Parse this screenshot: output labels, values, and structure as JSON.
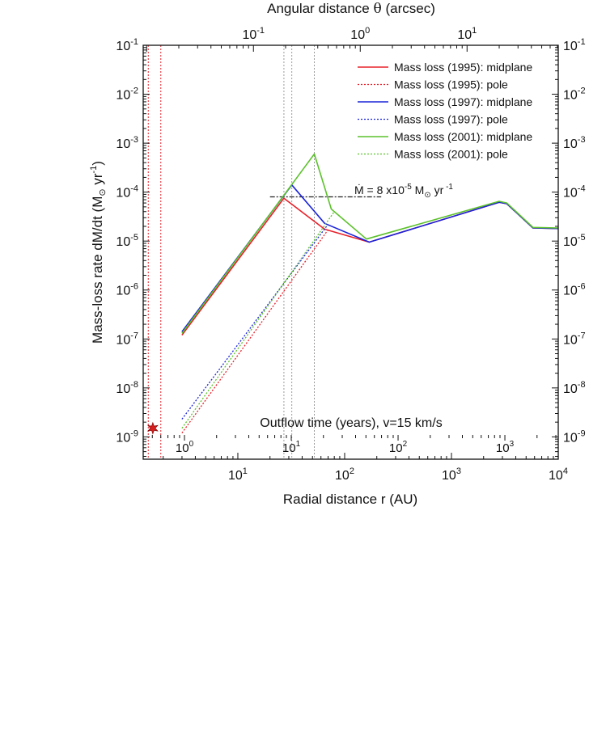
{
  "chart_data": {
    "type": "line",
    "top_axis_label_main": "Angular distance ",
    "top_axis_label_symbol": "θ",
    "top_axis_label_unit": " (arcsec)",
    "xlabel": "Radial distance r (AU)",
    "ylabel_main": "Mass-loss rate  dM/dt (M",
    "ylabel_sun": "⊙",
    "ylabel_unit": " yr",
    "ylabel_exp": "-1",
    "ylabel_close": ")",
    "x_scale": "log",
    "y_scale": "log",
    "xlim": [
      1.3,
      10000
    ],
    "ylim": [
      3.5e-10,
      0.1
    ],
    "x_ticks": [
      {
        "base": "10",
        "exp": "1"
      },
      {
        "base": "10",
        "exp": "2"
      },
      {
        "base": "10",
        "exp": "3"
      },
      {
        "base": "10",
        "exp": "4"
      }
    ],
    "y_ticks": [
      {
        "base": "10",
        "exp": "-1"
      },
      {
        "base": "10",
        "exp": "-2"
      },
      {
        "base": "10",
        "exp": "-3"
      },
      {
        "base": "10",
        "exp": "-4"
      },
      {
        "base": "10",
        "exp": "-5"
      },
      {
        "base": "10",
        "exp": "-6"
      },
      {
        "base": "10",
        "exp": "-7"
      },
      {
        "base": "10",
        "exp": "-8"
      },
      {
        "base": "10",
        "exp": "-9"
      }
    ],
    "top_ticks": [
      {
        "base": "10",
        "exp": "-1"
      },
      {
        "base": "10",
        "exp": "0"
      },
      {
        "base": "10",
        "exp": "1"
      }
    ],
    "time_label": "Outflow time (years), v=15 km/s",
    "time_ticks": [
      {
        "base": "10",
        "exp": "0"
      },
      {
        "base": "10",
        "exp": "1"
      },
      {
        "base": "10",
        "exp": "2"
      },
      {
        "base": "10",
        "exp": "3"
      }
    ],
    "annotation": {
      "mdot_symbol": "Ṁ",
      "eq": " = 8 x10",
      "exp": "-5",
      "unit_m": " M",
      "unit_sun": "⊙",
      "unit_yr": " yr",
      "unit_exp": " -1",
      "level": 8e-05,
      "x_range": [
        20,
        220
      ]
    },
    "vertical_markers": [
      1.45,
      1.9,
      27,
      32,
      52
    ],
    "star_marker": {
      "x": 1.6,
      "y": 1.5e-09
    },
    "legend_position": "top-right",
    "series": [
      {
        "name": "Mass loss (1995): midplane",
        "color": "#e8202a",
        "style": "solid",
        "x": [
          3,
          27,
          65,
          170,
          2800,
          3300,
          5800,
          10000
        ],
        "y": [
          1.2e-07,
          7.5e-05,
          1.75e-05,
          9.5e-06,
          6.2e-05,
          5.8e-05,
          1.85e-05,
          1.8e-05
        ]
      },
      {
        "name": "Mass loss (1995): pole",
        "color": "#e8202a",
        "style": "dotted",
        "x": [
          3,
          70
        ],
        "y": [
          1.2e-09,
          1.7e-05
        ]
      },
      {
        "name": "Mass loss (1997): midplane",
        "color": "#1a23d8",
        "style": "solid",
        "x": [
          3,
          32,
          65,
          170,
          2800,
          3300,
          5800,
          10000
        ],
        "y": [
          1.4e-07,
          0.00014,
          2.3e-05,
          9.5e-06,
          6.2e-05,
          5.8e-05,
          1.85e-05,
          1.8e-05
        ]
      },
      {
        "name": "Mass loss (1997): pole",
        "color": "#1a23d8",
        "style": "dotted",
        "x": [
          3,
          70
        ],
        "y": [
          2.3e-09,
          2.2e-05
        ]
      },
      {
        "name": "Mass loss (2001): midplane",
        "color": "#5cc12b",
        "style": "solid",
        "x": [
          3,
          52,
          75,
          160,
          2800,
          3300,
          5800,
          10000
        ],
        "y": [
          1.3e-07,
          0.0006,
          4.5e-05,
          1.1e-05,
          6.5e-05,
          6e-05,
          1.9e-05,
          1.85e-05
        ]
      },
      {
        "name": "Mass loss (2001): pole",
        "color": "#5cc12b",
        "style": "dotted",
        "x": [
          3,
          80
        ],
        "y": [
          1.5e-09,
          4e-05
        ]
      }
    ]
  }
}
